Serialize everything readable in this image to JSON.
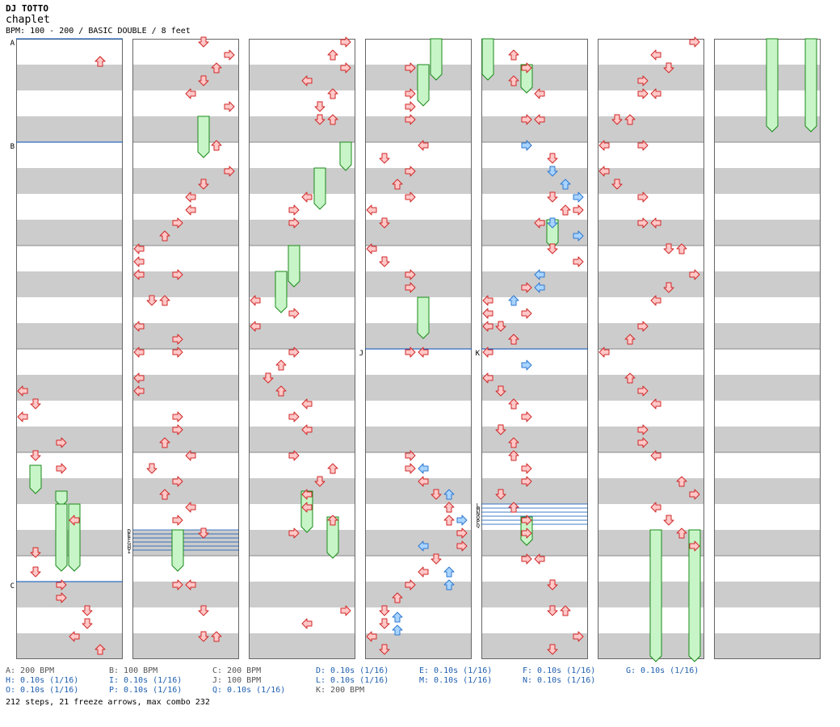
{
  "header": {
    "artist": "DJ TOTTO",
    "title": "chaplet",
    "info": "BPM: 100 - 200 / BASIC DOUBLE / 8 feet"
  },
  "colors": {
    "stripe": "#cccccc",
    "arrow_red_fill": "#ffc8c8",
    "arrow_red_stroke": "#d02828",
    "arrow_blue_fill": "#a8d4ff",
    "arrow_blue_stroke": "#2f78d0",
    "freeze_fill": "#c8f5c8",
    "freeze_stroke": "#1a8a1a",
    "bpm_line": "#0050b8"
  },
  "column_markers": [
    {
      "col": 0,
      "row": 0,
      "label": "A"
    },
    {
      "col": 0,
      "row": 16,
      "label": "B"
    },
    {
      "col": 0,
      "row": 84,
      "label": "C"
    },
    {
      "col": 3,
      "row": 48,
      "label": "J"
    },
    {
      "col": 4,
      "row": 48,
      "label": "K"
    }
  ],
  "stack_markers": [
    {
      "col": 1,
      "row": 76,
      "labels": [
        "D",
        "E",
        "F",
        "G",
        "H",
        "I"
      ]
    },
    {
      "col": 4,
      "row": 72,
      "labels": [
        "L",
        "M",
        "N",
        "O",
        "P",
        "Q"
      ]
    }
  ],
  "legend": [
    [
      "A: 200 BPM",
      "B: 100 BPM",
      "C: 200 BPM",
      "D: 0.10s (1/16)",
      "E: 0.10s (1/16)",
      "F: 0.10s (1/16)",
      "G: 0.10s (1/16)"
    ],
    [
      "H: 0.10s (1/16)",
      "I: 0.10s (1/16)",
      "J: 100 BPM",
      "L: 0.10s (1/16)",
      "M: 0.10s (1/16)",
      "N: 0.10s (1/16)"
    ],
    [
      "O: 0.10s (1/16)",
      "P: 0.10s (1/16)",
      "Q: 0.10s (1/16)",
      "K: 200 BPM"
    ]
  ],
  "summary": "212 steps, 21 freeze arrows, max combo 232",
  "chart_data": {
    "type": "step_chart",
    "mode": "BASIC DOUBLE",
    "difficulty_feet": 8,
    "bpm_range": [
      100,
      200
    ],
    "lanes": [
      "L",
      "D",
      "U",
      "R",
      "L",
      "D",
      "U",
      "R"
    ],
    "rows_per_column": 96,
    "steps": [
      [
        0,
        3,
        6,
        "r"
      ],
      [
        0,
        3,
        6,
        "r"
      ],
      [
        0,
        54,
        0,
        "r"
      ],
      [
        0,
        56,
        1,
        "r"
      ],
      [
        0,
        58,
        0,
        "r"
      ],
      [
        0,
        62,
        3,
        "r"
      ],
      [
        0,
        64,
        1,
        "r"
      ],
      [
        0,
        66,
        3,
        "r"
      ],
      [
        0,
        74,
        4,
        "r"
      ],
      [
        0,
        79,
        1,
        "r"
      ],
      [
        0,
        82,
        1,
        "r"
      ],
      [
        0,
        84,
        3,
        "r"
      ],
      [
        0,
        86,
        3,
        "r"
      ],
      [
        0,
        88,
        5,
        "r"
      ],
      [
        0,
        90,
        5,
        "r"
      ],
      [
        0,
        92,
        4,
        "r"
      ],
      [
        0,
        94,
        6,
        "r"
      ],
      [
        1,
        0,
        5,
        "r"
      ],
      [
        1,
        2,
        7,
        "r"
      ],
      [
        1,
        4,
        6,
        "r"
      ],
      [
        1,
        6,
        5,
        "r"
      ],
      [
        1,
        8,
        4,
        "r"
      ],
      [
        1,
        10,
        7,
        "r"
      ],
      [
        1,
        16,
        6,
        "r"
      ],
      [
        1,
        20,
        7,
        "r"
      ],
      [
        1,
        22,
        5,
        "r"
      ],
      [
        1,
        24,
        4,
        "r"
      ],
      [
        1,
        26,
        4,
        "r"
      ],
      [
        1,
        28,
        3,
        "r"
      ],
      [
        1,
        30,
        2,
        "r"
      ],
      [
        1,
        32,
        0,
        "r"
      ],
      [
        1,
        34,
        0,
        "r"
      ],
      [
        1,
        36,
        0,
        "r"
      ],
      [
        1,
        36,
        3,
        "r"
      ],
      [
        1,
        40,
        1,
        "r"
      ],
      [
        1,
        40,
        2,
        "r"
      ],
      [
        1,
        44,
        0,
        "r"
      ],
      [
        1,
        46,
        3,
        "r"
      ],
      [
        1,
        48,
        0,
        "r"
      ],
      [
        1,
        48,
        3,
        "r"
      ],
      [
        1,
        52,
        0,
        "r"
      ],
      [
        1,
        54,
        0,
        "r"
      ],
      [
        1,
        58,
        3,
        "r"
      ],
      [
        1,
        60,
        3,
        "r"
      ],
      [
        1,
        62,
        2,
        "r"
      ],
      [
        1,
        64,
        4,
        "r"
      ],
      [
        1,
        66,
        1,
        "r"
      ],
      [
        1,
        68,
        3,
        "r"
      ],
      [
        1,
        70,
        2,
        "r"
      ],
      [
        1,
        72,
        4,
        "r"
      ],
      [
        1,
        74,
        3,
        "r"
      ],
      [
        1,
        76,
        5,
        "r"
      ],
      [
        1,
        84,
        3,
        "r"
      ],
      [
        1,
        84,
        4,
        "r"
      ],
      [
        1,
        88,
        5,
        "r"
      ],
      [
        1,
        92,
        5,
        "r"
      ],
      [
        1,
        92,
        6,
        "r"
      ],
      [
        2,
        0,
        7,
        "r"
      ],
      [
        2,
        2,
        6,
        "r"
      ],
      [
        2,
        4,
        7,
        "r"
      ],
      [
        2,
        6,
        4,
        "r"
      ],
      [
        2,
        8,
        6,
        "r"
      ],
      [
        2,
        10,
        5,
        "r"
      ],
      [
        2,
        12,
        5,
        "r"
      ],
      [
        2,
        12,
        6,
        "r"
      ],
      [
        2,
        24,
        4,
        "r"
      ],
      [
        2,
        26,
        3,
        "r"
      ],
      [
        2,
        28,
        3,
        "r"
      ],
      [
        2,
        40,
        0,
        "r"
      ],
      [
        2,
        42,
        3,
        "r"
      ],
      [
        2,
        44,
        0,
        "r"
      ],
      [
        2,
        48,
        3,
        "r"
      ],
      [
        2,
        50,
        2,
        "r"
      ],
      [
        2,
        52,
        1,
        "r"
      ],
      [
        2,
        54,
        2,
        "r"
      ],
      [
        2,
        56,
        4,
        "r"
      ],
      [
        2,
        58,
        3,
        "r"
      ],
      [
        2,
        60,
        4,
        "r"
      ],
      [
        2,
        64,
        3,
        "r"
      ],
      [
        2,
        66,
        6,
        "r"
      ],
      [
        2,
        68,
        5,
        "r"
      ],
      [
        2,
        70,
        4,
        "r"
      ],
      [
        2,
        72,
        4,
        "r"
      ],
      [
        2,
        74,
        6,
        "r"
      ],
      [
        2,
        76,
        3,
        "r"
      ],
      [
        2,
        88,
        7,
        "r"
      ],
      [
        2,
        90,
        4,
        "r"
      ],
      [
        3,
        4,
        3,
        "r"
      ],
      [
        3,
        8,
        3,
        "r"
      ],
      [
        3,
        10,
        3,
        "r"
      ],
      [
        3,
        12,
        3,
        "r"
      ],
      [
        3,
        16,
        4,
        "r"
      ],
      [
        3,
        18,
        1,
        "r"
      ],
      [
        3,
        20,
        3,
        "r"
      ],
      [
        3,
        22,
        2,
        "r"
      ],
      [
        3,
        24,
        3,
        "r"
      ],
      [
        3,
        26,
        0,
        "r"
      ],
      [
        3,
        28,
        1,
        "r"
      ],
      [
        3,
        32,
        0,
        "r"
      ],
      [
        3,
        34,
        1,
        "r"
      ],
      [
        3,
        36,
        3,
        "r"
      ],
      [
        3,
        38,
        3,
        "r"
      ],
      [
        3,
        48,
        3,
        "r"
      ],
      [
        3,
        48,
        4,
        "r"
      ],
      [
        3,
        64,
        3,
        "r"
      ],
      [
        3,
        66,
        3,
        "r"
      ],
      [
        3,
        66,
        4,
        "b"
      ],
      [
        3,
        68,
        4,
        "r"
      ],
      [
        3,
        70,
        5,
        "r"
      ],
      [
        3,
        70,
        6,
        "b"
      ],
      [
        3,
        72,
        6,
        "r"
      ],
      [
        3,
        74,
        6,
        "r"
      ],
      [
        3,
        74,
        7,
        "b"
      ],
      [
        3,
        76,
        7,
        "r"
      ],
      [
        3,
        78,
        4,
        "b"
      ],
      [
        3,
        78,
        7,
        "r"
      ],
      [
        3,
        80,
        5,
        "r"
      ],
      [
        3,
        82,
        4,
        "r"
      ],
      [
        3,
        82,
        6,
        "b"
      ],
      [
        3,
        84,
        3,
        "r"
      ],
      [
        3,
        84,
        6,
        "b"
      ],
      [
        3,
        86,
        2,
        "r"
      ],
      [
        3,
        88,
        1,
        "r"
      ],
      [
        3,
        89,
        2,
        "b"
      ],
      [
        3,
        90,
        1,
        "r"
      ],
      [
        3,
        91,
        2,
        "b"
      ],
      [
        3,
        92,
        0,
        "r"
      ],
      [
        3,
        94,
        1,
        "r"
      ],
      [
        4,
        2,
        2,
        "r"
      ],
      [
        4,
        4,
        3,
        "r"
      ],
      [
        4,
        6,
        2,
        "r"
      ],
      [
        4,
        8,
        4,
        "r"
      ],
      [
        4,
        12,
        3,
        "r"
      ],
      [
        4,
        12,
        4,
        "r"
      ],
      [
        4,
        16,
        3,
        "r"
      ],
      [
        4,
        16,
        3,
        "b"
      ],
      [
        4,
        18,
        5,
        "r"
      ],
      [
        4,
        20,
        5,
        "b"
      ],
      [
        4,
        22,
        6,
        "b"
      ],
      [
        4,
        24,
        5,
        "r"
      ],
      [
        4,
        24,
        7,
        "b"
      ],
      [
        4,
        26,
        7,
        "r"
      ],
      [
        4,
        26,
        6,
        "r"
      ],
      [
        4,
        28,
        5,
        "b"
      ],
      [
        4,
        28,
        4,
        "r"
      ],
      [
        4,
        30,
        7,
        "b"
      ],
      [
        4,
        32,
        5,
        "r"
      ],
      [
        4,
        34,
        7,
        "r"
      ],
      [
        4,
        36,
        4,
        "b"
      ],
      [
        4,
        38,
        3,
        "r"
      ],
      [
        4,
        38,
        4,
        "b"
      ],
      [
        4,
        40,
        2,
        "b"
      ],
      [
        4,
        40,
        0,
        "r"
      ],
      [
        4,
        42,
        0,
        "b"
      ],
      [
        4,
        42,
        0,
        "r"
      ],
      [
        4,
        42,
        3,
        "r"
      ],
      [
        4,
        44,
        0,
        "r"
      ],
      [
        4,
        44,
        1,
        "r"
      ],
      [
        4,
        46,
        2,
        "r"
      ],
      [
        4,
        46,
        2,
        "r"
      ],
      [
        4,
        48,
        0,
        "r"
      ],
      [
        4,
        50,
        3,
        "b"
      ],
      [
        4,
        52,
        0,
        "r"
      ],
      [
        4,
        54,
        1,
        "r"
      ],
      [
        4,
        56,
        2,
        "r"
      ],
      [
        4,
        58,
        3,
        "r"
      ],
      [
        4,
        60,
        1,
        "r"
      ],
      [
        4,
        62,
        2,
        "r"
      ],
      [
        4,
        64,
        2,
        "r"
      ],
      [
        4,
        66,
        3,
        "r"
      ],
      [
        4,
        68,
        3,
        "r"
      ],
      [
        4,
        70,
        1,
        "r"
      ],
      [
        4,
        72,
        2,
        "r"
      ],
      [
        4,
        74,
        3,
        "r"
      ],
      [
        4,
        76,
        3,
        "r"
      ],
      [
        4,
        80,
        3,
        "r"
      ],
      [
        4,
        80,
        4,
        "r"
      ],
      [
        4,
        84,
        5,
        "r"
      ],
      [
        4,
        88,
        5,
        "r"
      ],
      [
        4,
        88,
        6,
        "r"
      ],
      [
        4,
        92,
        7,
        "r"
      ],
      [
        4,
        94,
        5,
        "r"
      ],
      [
        5,
        0,
        7,
        "r"
      ],
      [
        5,
        2,
        4,
        "r"
      ],
      [
        5,
        4,
        5,
        "r"
      ],
      [
        5,
        6,
        3,
        "r"
      ],
      [
        5,
        8,
        3,
        "r"
      ],
      [
        5,
        8,
        4,
        "r"
      ],
      [
        5,
        12,
        1,
        "r"
      ],
      [
        5,
        12,
        2,
        "r"
      ],
      [
        5,
        16,
        0,
        "r"
      ],
      [
        5,
        16,
        3,
        "r"
      ],
      [
        5,
        20,
        0,
        "r"
      ],
      [
        5,
        22,
        1,
        "r"
      ],
      [
        5,
        24,
        3,
        "r"
      ],
      [
        5,
        28,
        3,
        "r"
      ],
      [
        5,
        28,
        4,
        "r"
      ],
      [
        5,
        32,
        5,
        "r"
      ],
      [
        5,
        32,
        6,
        "r"
      ],
      [
        5,
        36,
        7,
        "r"
      ],
      [
        5,
        38,
        5,
        "r"
      ],
      [
        5,
        40,
        4,
        "r"
      ],
      [
        5,
        44,
        3,
        "r"
      ],
      [
        5,
        46,
        2,
        "r"
      ],
      [
        5,
        48,
        0,
        "r"
      ],
      [
        5,
        52,
        2,
        "r"
      ],
      [
        5,
        54,
        3,
        "r"
      ],
      [
        5,
        56,
        4,
        "r"
      ],
      [
        5,
        60,
        3,
        "r"
      ],
      [
        5,
        62,
        3,
        "r"
      ],
      [
        5,
        64,
        4,
        "r"
      ],
      [
        5,
        68,
        6,
        "r"
      ],
      [
        5,
        70,
        7,
        "r"
      ],
      [
        5,
        72,
        4,
        "r"
      ],
      [
        5,
        74,
        5,
        "r"
      ],
      [
        5,
        76,
        6,
        "r"
      ],
      [
        5,
        78,
        7,
        "r"
      ]
    ],
    "freezes": [
      [
        0,
        66,
        1,
        70
      ],
      [
        0,
        70,
        3,
        72
      ],
      [
        0,
        72,
        3,
        82
      ],
      [
        0,
        72,
        4,
        82
      ],
      [
        1,
        12,
        5,
        18
      ],
      [
        1,
        76,
        3,
        82
      ],
      [
        2,
        16,
        7,
        20
      ],
      [
        2,
        20,
        5,
        26
      ],
      [
        2,
        32,
        3,
        38
      ],
      [
        2,
        36,
        2,
        42
      ],
      [
        2,
        70,
        4,
        76
      ],
      [
        2,
        74,
        6,
        80
      ],
      [
        3,
        0,
        5,
        6
      ],
      [
        3,
        4,
        4,
        10
      ],
      [
        3,
        40,
        4,
        46
      ],
      [
        4,
        0,
        0,
        6
      ],
      [
        4,
        4,
        3,
        8
      ],
      [
        4,
        28,
        5,
        32
      ],
      [
        4,
        74,
        3,
        78
      ],
      [
        5,
        76,
        4,
        96
      ],
      [
        5,
        76,
        7,
        96
      ],
      [
        6,
        0,
        4,
        14
      ],
      [
        6,
        0,
        7,
        14
      ]
    ]
  }
}
